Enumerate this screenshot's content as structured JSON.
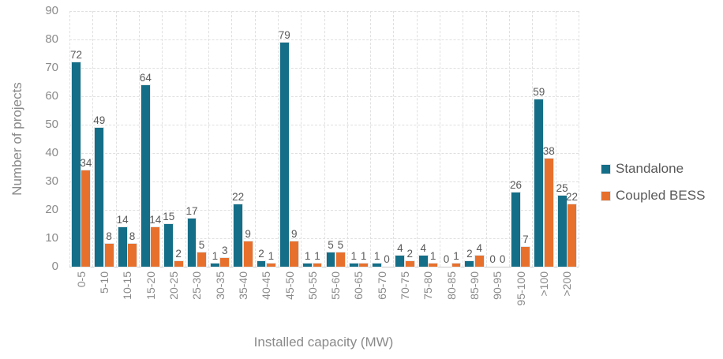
{
  "chart_data": {
    "type": "bar",
    "title": "",
    "xlabel": "Installed capacity (MW)",
    "ylabel": "Number of projects",
    "categories": [
      "0-5",
      "5-10",
      "10-15",
      "15-20",
      "20-25",
      "25-30",
      "30-35",
      "35-40",
      "40-45",
      "45-50",
      "50-55",
      "55-60",
      "60-65",
      "65-70",
      "70-75",
      "75-80",
      "80-85",
      "85-90",
      "90-95",
      "95-100",
      ">100",
      ">200"
    ],
    "series": [
      {
        "name": "Standalone",
        "color": "#146e87",
        "values": [
          72,
          49,
          14,
          64,
          15,
          17,
          1,
          22,
          2,
          79,
          1,
          5,
          1,
          1,
          4,
          4,
          0,
          2,
          0,
          26,
          59,
          25
        ]
      },
      {
        "name": "Coupled BESS",
        "color": "#e8702d",
        "values": [
          34,
          8,
          8,
          14,
          2,
          5,
          3,
          9,
          1,
          9,
          1,
          5,
          1,
          0,
          2,
          1,
          1,
          4,
          0,
          7,
          38,
          22
        ]
      }
    ],
    "ylim": [
      0,
      90
    ],
    "yticks": [
      0,
      10,
      20,
      30,
      40,
      50,
      60,
      70,
      80,
      90
    ],
    "grid": true,
    "gridline_style": "dashed",
    "legend_position": "right",
    "data_labels": true,
    "xtick_rotation": -90
  },
  "colors": {
    "grid": "#e0e0e0",
    "axis_text": "#8a8a8a",
    "data_label_text": "#595959"
  }
}
